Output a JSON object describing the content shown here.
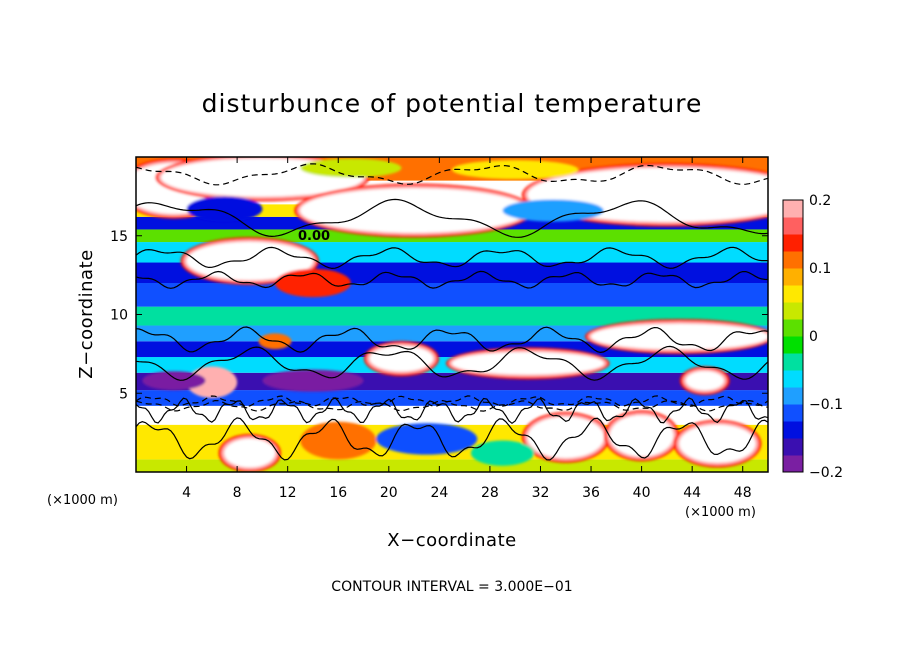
{
  "chart_data": {
    "type": "heatmap",
    "title": "disturbunce of potential temperature",
    "xlabel": "X−coordinate",
    "ylabel": "Z−coordinate",
    "x_unit": "(×1000 m)",
    "y_unit": "(×1000 m)",
    "xlim": [
      0,
      50
    ],
    "ylim": [
      0,
      20
    ],
    "x_ticks": [
      4,
      8,
      12,
      16,
      20,
      24,
      28,
      32,
      36,
      40,
      44,
      48
    ],
    "y_ticks": [
      5,
      10,
      15
    ],
    "colorbar": {
      "range": [
        -0.2,
        0.2
      ],
      "ticks": [
        0.2,
        0.1,
        0,
        -0.1,
        -0.2
      ],
      "tick_labels": [
        "0.2",
        "0.1",
        "0",
        "−0.1",
        "−0.2"
      ],
      "colors": [
        "#7a1fa2",
        "#3a0fb0",
        "#0010e0",
        "#1050ff",
        "#1f9fff",
        "#00dcff",
        "#00e0a0",
        "#00e000",
        "#5ce000",
        "#c8e800",
        "#ffe800",
        "#ffb000",
        "#ff7000",
        "#ff2000",
        "#ff6060",
        "#ffb0b0"
      ]
    },
    "contour_label": "0.00",
    "contour_interval_text": "CONTOUR INTERVAL = 3.000E−01",
    "bands": [
      {
        "z": [
          0,
          0.8
        ],
        "value": 0.03
      },
      {
        "z": [
          0.8,
          3.0
        ],
        "value": 0.05
      },
      {
        "z": [
          3.0,
          4.2
        ],
        "value": 0.22
      },
      {
        "z": [
          4.2,
          5.2
        ],
        "value": -0.12
      },
      {
        "z": [
          5.2,
          6.3
        ],
        "value": -0.17
      },
      {
        "z": [
          6.3,
          7.3
        ],
        "value": -0.07
      },
      {
        "z": [
          7.3,
          8.3
        ],
        "value": -0.15
      },
      {
        "z": [
          8.3,
          9.3
        ],
        "value": -0.08
      },
      {
        "z": [
          9.3,
          10.5
        ],
        "value": -0.05
      },
      {
        "z": [
          10.5,
          12.0
        ],
        "value": -0.12
      },
      {
        "z": [
          12.0,
          13.3
        ],
        "value": -0.15
      },
      {
        "z": [
          13.3,
          14.6
        ],
        "value": -0.06
      },
      {
        "z": [
          14.6,
          15.4
        ],
        "value": 0.0
      },
      {
        "z": [
          15.4,
          16.2
        ],
        "value": -0.14
      },
      {
        "z": [
          16.2,
          17.0
        ],
        "value": 0.05
      },
      {
        "z": [
          17.0,
          18.5
        ],
        "value": 0.22
      },
      {
        "z": [
          18.5,
          20.0
        ],
        "value": 0.1
      }
    ],
    "blobs": [
      {
        "x": 3,
        "z": 18,
        "rx": 4,
        "rz": 1.6,
        "value": 0.22
      },
      {
        "x": 10,
        "z": 18.7,
        "rx": 8,
        "rz": 1.2,
        "value": 0.22
      },
      {
        "x": 22,
        "z": 16.6,
        "rx": 9,
        "rz": 1.4,
        "value": 0.22
      },
      {
        "x": 42,
        "z": 17.6,
        "rx": 11,
        "rz": 1.7,
        "value": 0.22
      },
      {
        "x": 17,
        "z": 19.3,
        "rx": 4,
        "rz": 0.6,
        "value": 0.03
      },
      {
        "x": 30,
        "z": 19.2,
        "rx": 5,
        "rz": 0.6,
        "value": 0.06
      },
      {
        "x": 7,
        "z": 16.7,
        "rx": 3,
        "rz": 0.8,
        "value": -0.14
      },
      {
        "x": 33,
        "z": 16.6,
        "rx": 4,
        "rz": 0.7,
        "value": -0.1
      },
      {
        "x": 9,
        "z": 13.4,
        "rx": 5,
        "rz": 1.2,
        "value": 0.22
      },
      {
        "x": 14,
        "z": 12.0,
        "rx": 3,
        "rz": 0.9,
        "value": 0.15
      },
      {
        "x": 11,
        "z": 8.3,
        "rx": 1.3,
        "rz": 0.5,
        "value": 0.12
      },
      {
        "x": 21,
        "z": 7.2,
        "rx": 2.5,
        "rz": 0.8,
        "value": 0.22
      },
      {
        "x": 31,
        "z": 6.9,
        "rx": 6,
        "rz": 0.7,
        "value": 0.22
      },
      {
        "x": 43,
        "z": 8.6,
        "rx": 7,
        "rz": 0.8,
        "value": 0.22
      },
      {
        "x": 6,
        "z": 5.7,
        "rx": 2,
        "rz": 1.0,
        "value": 0.2
      },
      {
        "x": 14,
        "z": 5.8,
        "rx": 4,
        "rz": 0.7,
        "value": -0.2
      },
      {
        "x": 3,
        "z": 5.8,
        "rx": 2.5,
        "rz": 0.6,
        "value": -0.2
      },
      {
        "x": 23,
        "z": 2.1,
        "rx": 4,
        "rz": 1.0,
        "value": -0.12
      },
      {
        "x": 34,
        "z": 2.2,
        "rx": 3,
        "rz": 1.3,
        "value": 0.22
      },
      {
        "x": 40,
        "z": 2.3,
        "rx": 2.5,
        "rz": 1.3,
        "value": 0.22
      },
      {
        "x": 46,
        "z": 1.8,
        "rx": 3,
        "rz": 1.2,
        "value": 0.22
      },
      {
        "x": 9,
        "z": 1.2,
        "rx": 2,
        "rz": 0.9,
        "value": 0.22
      },
      {
        "x": 16,
        "z": 2.0,
        "rx": 3,
        "rz": 1.2,
        "value": 0.12
      },
      {
        "x": 45,
        "z": 5.8,
        "rx": 1.5,
        "rz": 0.6,
        "value": 0.22
      },
      {
        "x": 29,
        "z": 1.2,
        "rx": 2.5,
        "rz": 0.8,
        "value": -0.05
      }
    ],
    "contours": [
      {
        "z": 16.1,
        "amp": 0.9,
        "period": 18,
        "phase": 0.6,
        "dashed": false
      },
      {
        "z": 18.9,
        "amp": 0.5,
        "period": 14,
        "phase": 1.7,
        "dashed": true
      },
      {
        "z": 13.6,
        "amp": 0.5,
        "period": 9,
        "phase": 0.2,
        "dashed": false
      },
      {
        "z": 12.2,
        "amp": 0.4,
        "period": 7,
        "phase": 2.2,
        "dashed": false
      },
      {
        "z": 8.4,
        "amp": 0.6,
        "period": 8,
        "phase": 1.0,
        "dashed": false
      },
      {
        "z": 6.9,
        "amp": 0.8,
        "period": 11,
        "phase": 2.7,
        "dashed": false
      },
      {
        "z": 4.5,
        "amp": 0.25,
        "period": 5,
        "phase": 0.0,
        "dashed": true
      },
      {
        "z": 4.2,
        "amp": 0.25,
        "period": 6,
        "phase": 1.2,
        "dashed": true
      },
      {
        "z": 3.9,
        "amp": 0.6,
        "period": 4,
        "phase": 2.0,
        "dashed": false
      },
      {
        "z": 2.1,
        "amp": 1.0,
        "period": 7,
        "phase": 0.5,
        "dashed": false
      }
    ]
  }
}
